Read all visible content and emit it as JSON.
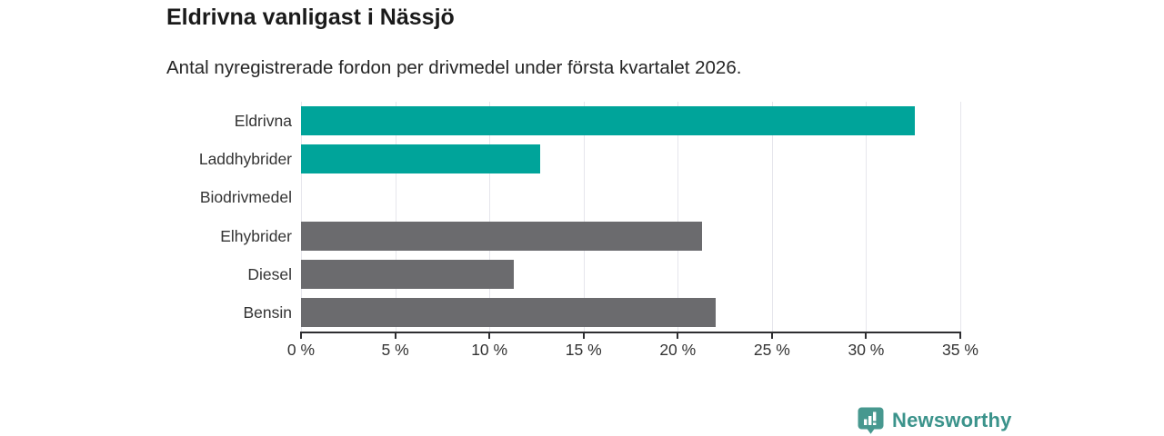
{
  "header": {
    "title": "Eldrivna vanligast i Nässjö",
    "subtitle": "Antal nyregistrerade fordon per drivmedel under första kvartalet 2026."
  },
  "chart_data": {
    "type": "bar",
    "orientation": "horizontal",
    "title": "Eldrivna vanligast i Nässjö",
    "subtitle": "Antal nyregistrerade fordon per drivmedel under första kvartalet 2026.",
    "categories": [
      "Eldrivna",
      "Laddhybrider",
      "Biodrivmedel",
      "Elhybrider",
      "Diesel",
      "Bensin"
    ],
    "values": [
      32.6,
      12.7,
      0,
      21.3,
      11.3,
      22.0
    ],
    "unit": "%",
    "bar_colors": [
      "#00a49a",
      "#00a49a",
      "#00a49a",
      "#6b6b6e",
      "#6b6b6e",
      "#6b6b6e"
    ],
    "xlabel": "",
    "ylabel": "",
    "xlim": [
      0,
      35
    ],
    "xticks": [
      0,
      5,
      10,
      15,
      20,
      25,
      30,
      35
    ],
    "xtick_labels": [
      "0 %",
      "5 %",
      "10 %",
      "15 %",
      "20 %",
      "25 %",
      "30 %",
      "35 %"
    ],
    "grid": "vertical-light",
    "legend": "none"
  },
  "colors": {
    "accent_teal": "#00a49a",
    "neutral_gray": "#6b6b6e",
    "gridline": "#e6e6ec",
    "axis": "#2e2e31",
    "text_dark": "#1a1a1a",
    "text_label": "#333333"
  },
  "branding": {
    "logo_text": "Newsworthy",
    "logo_text_color": "#3b938b",
    "logo_icon_color": "#47988f",
    "logo_icon": "bar-chart-speech-bubble"
  }
}
